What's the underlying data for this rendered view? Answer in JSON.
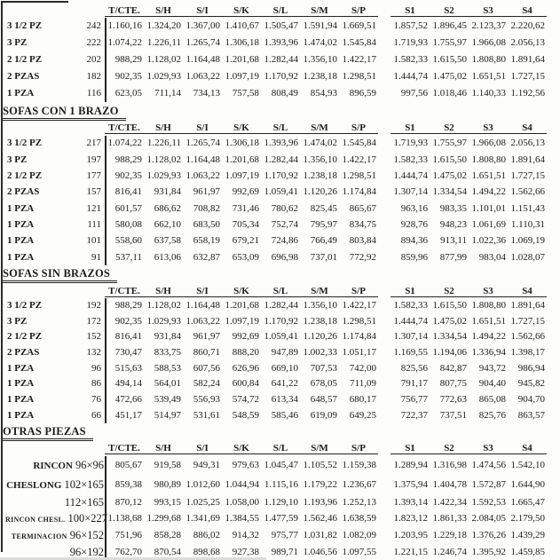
{
  "colors": {
    "ink": "#1c1c1c",
    "paper": "#fdfdfc"
  },
  "columns": [
    "T/CTE.",
    "S/H",
    "S/I",
    "S/K",
    "S/L",
    "S/M",
    "S/P",
    "S1",
    "S2",
    "S3",
    "S4"
  ],
  "sections": [
    {
      "title": "",
      "rows": [
        {
          "label": "3 1/2 PZ",
          "qty": "242",
          "values": [
            "1.160,16",
            "1.324,20",
            "1.367,00",
            "1.410,67",
            "1.505,47",
            "1.591,94",
            "1.669,51",
            "1.857,52",
            "1.896,45",
            "2.123,37",
            "2.220,62"
          ]
        },
        {
          "label": "3 PZ",
          "qty": "222",
          "values": [
            "1.074,22",
            "1.226,11",
            "1.265,74",
            "1.306,18",
            "1.393,96",
            "1.474,02",
            "1.545,84",
            "1.719,93",
            "1.755,97",
            "1.966,08",
            "2.056,13"
          ]
        },
        {
          "label": "2 1/2 PZ",
          "qty": "202",
          "values": [
            "988,29",
            "1.128,02",
            "1.164,48",
            "1.201,68",
            "1.282,44",
            "1.356,10",
            "1.422,17",
            "1.582,33",
            "1.615,50",
            "1.808,80",
            "1.891,64"
          ]
        },
        {
          "label": "2 PZAS",
          "qty": "182",
          "values": [
            "902,35",
            "1.029,93",
            "1.063,22",
            "1.097,19",
            "1.170,92",
            "1.238,18",
            "1.298,51",
            "1.444,74",
            "1.475,02",
            "1.651,51",
            "1.727,15"
          ]
        },
        {
          "label": "1 PZA",
          "qty": "116",
          "values": [
            "623,05",
            "711,14",
            "734,13",
            "757,58",
            "808,49",
            "854,93",
            "896,59",
            "997,56",
            "1.018,46",
            "1.140,33",
            "1.192,56"
          ]
        }
      ]
    },
    {
      "title": "SOFAS CON 1 BRAZO",
      "rows": [
        {
          "label": "3 1/2 PZ",
          "qty": "217",
          "values": [
            "1.074,22",
            "1.226,11",
            "1.265,74",
            "1.306,18",
            "1.393,96",
            "1.474,02",
            "1.545,84",
            "1.719,93",
            "1.755,97",
            "1.966,08",
            "2.056,13"
          ]
        },
        {
          "label": "3 PZ",
          "qty": "197",
          "values": [
            "988,29",
            "1.128,02",
            "1.164,48",
            "1.201,68",
            "1.282,44",
            "1.356,10",
            "1.422,17",
            "1.582,33",
            "1.615,50",
            "1.808,80",
            "1.891,64"
          ]
        },
        {
          "label": "2 1/2 PZ",
          "qty": "177",
          "values": [
            "902,35",
            "1.029,93",
            "1.063,22",
            "1.097,19",
            "1.170,92",
            "1.238,18",
            "1.298,51",
            "1.444,74",
            "1.475,02",
            "1.651,51",
            "1.727,15"
          ]
        },
        {
          "label": "2 PZAS",
          "qty": "157",
          "values": [
            "816,41",
            "931,84",
            "961,97",
            "992,69",
            "1.059,41",
            "1.120,26",
            "1.174,84",
            "1.307,14",
            "1.334,54",
            "1.494,22",
            "1.562,66"
          ]
        },
        {
          "label": "1 PZA",
          "qty": "121",
          "values": [
            "601,57",
            "686,62",
            "708,82",
            "731,46",
            "780,62",
            "825,45",
            "865,67",
            "963,16",
            "983,35",
            "1.101,01",
            "1.151,43"
          ]
        },
        {
          "label": "1 PZA",
          "qty": "111",
          "values": [
            "580,08",
            "662,10",
            "683,50",
            "705,34",
            "752,74",
            "795,97",
            "834,75",
            "928,76",
            "948,23",
            "1.061,69",
            "1.110,31"
          ]
        },
        {
          "label": "1 PZA",
          "qty": "101",
          "values": [
            "558,60",
            "637,58",
            "658,19",
            "679,21",
            "724,86",
            "766,49",
            "803,84",
            "894,36",
            "913,11",
            "1.022,36",
            "1.069,19"
          ]
        },
        {
          "label": "1 PZA",
          "qty": "91",
          "values": [
            "537,11",
            "613,06",
            "632,87",
            "653,09",
            "696,98",
            "737,01",
            "772,92",
            "859,96",
            "877,99",
            "983,04",
            "1.028,07"
          ]
        }
      ]
    },
    {
      "title": "SOFAS SIN BRAZOS",
      "rows": [
        {
          "label": "3 1/2 PZ",
          "qty": "192",
          "values": [
            "988,29",
            "1.128,02",
            "1.164,48",
            "1.201,68",
            "1.282,44",
            "1.356,10",
            "1.422,17",
            "1.582,33",
            "1.615,50",
            "1.808,80",
            "1.891,64"
          ]
        },
        {
          "label": "3 PZ",
          "qty": "172",
          "values": [
            "902,35",
            "1.029,93",
            "1.063,22",
            "1.097,19",
            "1.170,92",
            "1.238,18",
            "1.298,51",
            "1.444,74",
            "1.475,02",
            "1.651,51",
            "1.727,15"
          ]
        },
        {
          "label": "2 1/2 PZ",
          "qty": "152",
          "values": [
            "816,41",
            "931,84",
            "961,97",
            "992,69",
            "1.059,41",
            "1.120,26",
            "1.174,84",
            "1.307,14",
            "1.334,54",
            "1.494,22",
            "1.562,66"
          ]
        },
        {
          "label": "2 PZAS",
          "qty": "132",
          "values": [
            "730,47",
            "833,75",
            "860,71",
            "888,20",
            "947,89",
            "1.002,33",
            "1.051,17",
            "1.169,55",
            "1.194,06",
            "1.336,94",
            "1.398,17"
          ]
        },
        {
          "label": "1 PZA",
          "qty": "96",
          "values": [
            "515,63",
            "588,53",
            "607,56",
            "626,96",
            "669,10",
            "707,53",
            "742,00",
            "825,56",
            "842,87",
            "943,72",
            "986,94"
          ]
        },
        {
          "label": "1 PZA",
          "qty": "86",
          "values": [
            "494,14",
            "564,01",
            "582,24",
            "600,84",
            "641,22",
            "678,05",
            "711,09",
            "791,17",
            "807,75",
            "904,40",
            "945,82"
          ]
        },
        {
          "label": "1 PZA",
          "qty": "76",
          "values": [
            "472,66",
            "539,49",
            "556,93",
            "574,72",
            "613,34",
            "648,57",
            "680,17",
            "756,77",
            "772,63",
            "865,08",
            "904,70"
          ]
        },
        {
          "label": "1 PZA",
          "qty": "66",
          "values": [
            "451,17",
            "514,97",
            "531,61",
            "548,59",
            "585,46",
            "619,09",
            "649,25",
            "722,37",
            "737,51",
            "825,76",
            "863,57"
          ]
        }
      ]
    },
    {
      "title": "OTRAS PIEZAS",
      "pieces": true,
      "rows": [
        {
          "name": "RINCON",
          "small": false,
          "size": "96×96",
          "values": [
            "805,67",
            "919,58",
            "949,31",
            "979,63",
            "1.045,47",
            "1.105,52",
            "1.159,38",
            "1.289,94",
            "1.316,98",
            "1.474,56",
            "1.542,10"
          ]
        },
        {
          "name": "CHESLONG",
          "small": false,
          "size": "102×165",
          "values": [
            "859,38",
            "980,89",
            "1.012,60",
            "1.044,94",
            "1.115,16",
            "1.179,22",
            "1.236,67",
            "1.375,94",
            "1.404,78",
            "1.572,87",
            "1.644,90"
          ]
        },
        {
          "name": "",
          "small": false,
          "size": "112×165",
          "values": [
            "870,12",
            "993,15",
            "1.025,25",
            "1.058,00",
            "1.129,10",
            "1.193,96",
            "1.252,13",
            "1.393,14",
            "1.422,34",
            "1.592,53",
            "1.665,47"
          ]
        },
        {
          "name": "RINCON CHESL.",
          "small": true,
          "size": "100×227",
          "values": [
            "1.138,68",
            "1.299,68",
            "1.341,69",
            "1.384,55",
            "1.477,59",
            "1.562,46",
            "1.638,59",
            "1.823,12",
            "1.861,33",
            "2.084,05",
            "2.179,50"
          ]
        },
        {
          "name": "TERMINACION",
          "small": true,
          "size": "96×152",
          "values": [
            "751,96",
            "858,28",
            "886,02",
            "914,32",
            "975,77",
            "1.031,82",
            "1.082,09",
            "1.203,95",
            "1.229,18",
            "1.376,26",
            "1.439,29"
          ]
        },
        {
          "name": "",
          "small": false,
          "size": "96×192",
          "values": [
            "762,70",
            "870,54",
            "898,68",
            "927,38",
            "989,71",
            "1.046,56",
            "1.097,55",
            "1.221,15",
            "1.246,74",
            "1.395,92",
            "1.459,85"
          ]
        }
      ]
    }
  ]
}
